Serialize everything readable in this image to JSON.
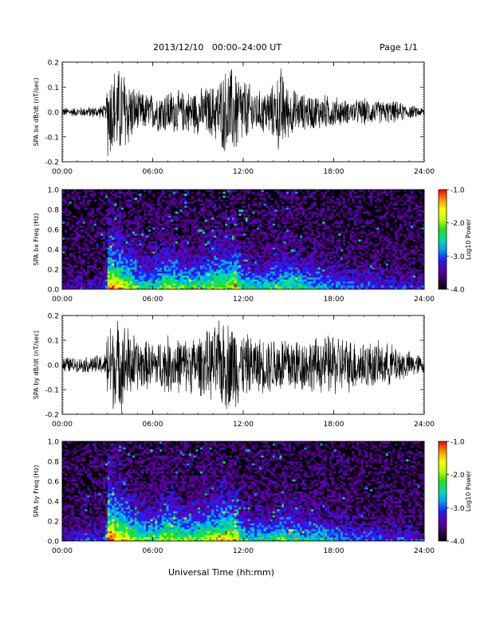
{
  "header": {
    "title": "2013/12/10   00:00–24:00 UT",
    "page": "Page 1/1"
  },
  "x_axis_title": "Universal Time (hh:mm)",
  "colors": {
    "trace": "#000000",
    "spectrogram_colormap": [
      "#000000",
      "#3a0060",
      "#5a00b0",
      "#2020ff",
      "#00a0ff",
      "#00e0a0",
      "#20e020",
      "#c0ff00",
      "#ffff00",
      "#ff9000",
      "#ff0000"
    ]
  },
  "chart_data": [
    {
      "type": "line",
      "ylabel": "SPA bx dB/dt (nT/sec)",
      "xlim": [
        0,
        24
      ],
      "ylim": [
        -0.2,
        0.2
      ],
      "xticks": [
        "00:00",
        "06:00",
        "12:00",
        "18:00",
        "24:00"
      ],
      "yticks": [
        "-0.2",
        "-0.1",
        "0.0",
        "0.1",
        "0.2"
      ],
      "envelope": {
        "x": [
          0,
          1,
          2,
          2.9,
          3.0,
          3.5,
          4.0,
          5.0,
          6.0,
          7.0,
          8.0,
          9.0,
          10.0,
          11.0,
          11.5,
          12.0,
          13.0,
          14.0,
          14.5,
          15.0,
          16.0,
          17.0,
          18.0,
          19.0,
          20.0,
          21.0,
          22.0,
          23.0,
          24.0
        ],
        "amplitude": [
          0.02,
          0.02,
          0.025,
          0.03,
          0.2,
          0.2,
          0.2,
          0.09,
          0.08,
          0.1,
          0.09,
          0.1,
          0.12,
          0.2,
          0.2,
          0.15,
          0.09,
          0.12,
          0.2,
          0.11,
          0.08,
          0.08,
          0.07,
          0.05,
          0.06,
          0.05,
          0.05,
          0.03,
          0.02
        ]
      }
    },
    {
      "type": "heatmap",
      "ylabel": "SPA bx Freq (Hz)",
      "colorbar_label": "Log10 Power",
      "colorbar_ticks": [
        "-1.0",
        "-2.0",
        "-3.0",
        "-4.0"
      ],
      "clim": [
        -4.0,
        -1.0
      ],
      "xlim": [
        0,
        24
      ],
      "ylim": [
        0.0,
        1.0
      ],
      "xticks": [
        "00:00",
        "06:00",
        "12:00",
        "18:00",
        "24:00"
      ],
      "yticks": [
        "0.0",
        "0.2",
        "0.4",
        "0.6",
        "0.8",
        "1.0"
      ],
      "activity": {
        "x": [
          0,
          2.9,
          3.0,
          3.5,
          4.0,
          5.0,
          6.0,
          7.0,
          8.0,
          9.0,
          10.0,
          11.0,
          11.5,
          12.0,
          13.0,
          14.0,
          15.0,
          16.0,
          17.0,
          18.0,
          19.0,
          20.0,
          22.0,
          24.0
        ],
        "level": [
          0.15,
          0.2,
          0.9,
          0.85,
          0.75,
          0.55,
          0.5,
          0.65,
          0.55,
          0.55,
          0.65,
          0.7,
          0.75,
          0.5,
          0.45,
          0.5,
          0.55,
          0.45,
          0.45,
          0.35,
          0.3,
          0.3,
          0.25,
          0.2
        ]
      }
    },
    {
      "type": "line",
      "ylabel": "SPA by dB/dt (nT/sec)",
      "xlim": [
        0,
        24
      ],
      "ylim": [
        -0.2,
        0.2
      ],
      "xticks": [
        "00:00",
        "06:00",
        "12:00",
        "18:00",
        "24:00"
      ],
      "yticks": [
        "-0.2",
        "-0.1",
        "0.0",
        "0.1",
        "0.2"
      ],
      "envelope": {
        "x": [
          0,
          1,
          2,
          2.9,
          3.0,
          3.5,
          4.0,
          5.0,
          6.0,
          7.0,
          8.0,
          9.0,
          10.0,
          10.5,
          11.0,
          11.5,
          12.0,
          13.0,
          14.0,
          15.0,
          16.0,
          17.0,
          18.0,
          19.0,
          20.0,
          21.0,
          22.0,
          23.0,
          24.0
        ],
        "amplitude": [
          0.04,
          0.03,
          0.04,
          0.05,
          0.2,
          0.2,
          0.2,
          0.12,
          0.1,
          0.13,
          0.12,
          0.13,
          0.16,
          0.2,
          0.2,
          0.2,
          0.14,
          0.12,
          0.13,
          0.14,
          0.12,
          0.12,
          0.14,
          0.12,
          0.11,
          0.1,
          0.09,
          0.06,
          0.04
        ]
      }
    },
    {
      "type": "heatmap",
      "ylabel": "SPA by Freq (Hz)",
      "colorbar_label": "Log10 Power",
      "colorbar_ticks": [
        "-1.0",
        "-2.0",
        "-3.0",
        "-4.0"
      ],
      "clim": [
        -4.0,
        -1.0
      ],
      "xlim": [
        0,
        24
      ],
      "ylim": [
        0.0,
        1.0
      ],
      "xticks": [
        "00:00",
        "06:00",
        "12:00",
        "18:00",
        "24:00"
      ],
      "yticks": [
        "0.0",
        "0.2",
        "0.4",
        "0.6",
        "0.8",
        "1.0"
      ],
      "activity": {
        "x": [
          0,
          2.9,
          3.0,
          3.5,
          4.0,
          5.0,
          6.0,
          7.0,
          8.0,
          9.0,
          10.0,
          11.0,
          11.5,
          12.0,
          13.0,
          14.0,
          15.0,
          16.0,
          17.0,
          18.0,
          19.0,
          20.0,
          22.0,
          24.0
        ],
        "level": [
          0.2,
          0.25,
          0.95,
          0.9,
          0.8,
          0.6,
          0.55,
          0.7,
          0.6,
          0.6,
          0.7,
          0.75,
          0.75,
          0.5,
          0.45,
          0.5,
          0.55,
          0.45,
          0.45,
          0.35,
          0.3,
          0.3,
          0.25,
          0.2
        ]
      }
    }
  ]
}
